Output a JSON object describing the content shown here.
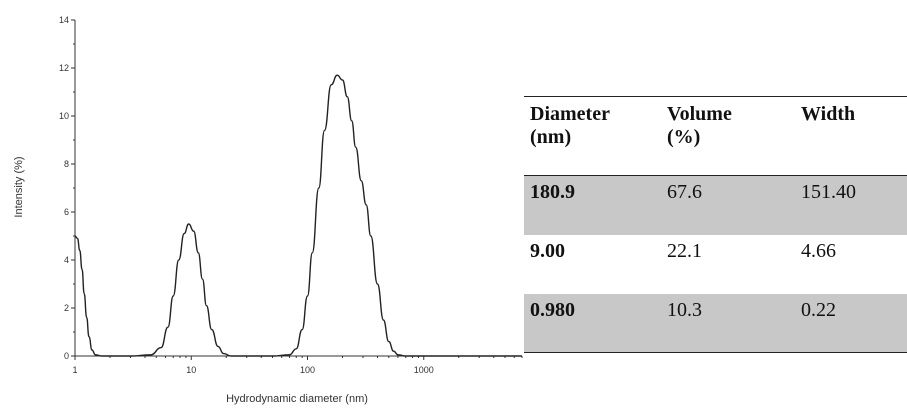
{
  "chart_data": {
    "type": "line",
    "xlabel": "Hydrodynamic diameter (nm)",
    "ylabel": "Intensity (%)",
    "x_scale": "log",
    "xlim": [
      1,
      7000
    ],
    "ylim": [
      0,
      14
    ],
    "x_ticks": [
      1,
      10,
      100,
      1000
    ],
    "x_tick_labels": [
      "1",
      "10",
      "100",
      "1000"
    ],
    "y_ticks": [
      0,
      2,
      4,
      6,
      8,
      10,
      12,
      14
    ],
    "y_tick_labels": [
      "0",
      "2",
      "4",
      "6",
      "8",
      "10",
      "12",
      "14"
    ],
    "grid": false,
    "series": [
      {
        "x": [
          1.0,
          1.05,
          1.1,
          1.15,
          1.2,
          1.26,
          1.32,
          1.4,
          1.5,
          1.7,
          2.0,
          3.0,
          4.5,
          5.5,
          6.3,
          7.0,
          7.8,
          8.7,
          9.5,
          10.5,
          11.5,
          12.5,
          13.5,
          15.0,
          17.0,
          19.0,
          22.0,
          30.0,
          50.0,
          70.0,
          80.0,
          90.0,
          100.0,
          110.0,
          125.0,
          140.0,
          160.0,
          180.0,
          200.0,
          220.0,
          240.0,
          260.0,
          290.0,
          320.0,
          350.0,
          400.0,
          450.0,
          500.0,
          550.0,
          600.0,
          700.0,
          1000.0,
          3000.0,
          7000.0
        ],
        "y": [
          5.0,
          4.9,
          4.4,
          3.6,
          2.6,
          1.6,
          0.8,
          0.25,
          0.05,
          0.0,
          0.0,
          0.0,
          0.05,
          0.35,
          1.2,
          2.5,
          4.0,
          5.1,
          5.5,
          5.2,
          4.3,
          3.2,
          2.1,
          1.1,
          0.4,
          0.1,
          0.0,
          0.0,
          0.0,
          0.05,
          0.3,
          1.1,
          2.5,
          4.3,
          7.0,
          9.4,
          11.3,
          11.7,
          11.5,
          10.8,
          9.8,
          8.7,
          7.3,
          6.3,
          5.0,
          3.0,
          1.5,
          0.6,
          0.2,
          0.05,
          0.0,
          0.0,
          0.0,
          0.0
        ]
      }
    ]
  },
  "table": {
    "headers": [
      {
        "line1": "Diameter",
        "line2": "(nm)"
      },
      {
        "line1": "Volume",
        "line2": "(%)"
      },
      {
        "line1": "Width",
        "line2": ""
      }
    ],
    "rows": [
      [
        "180.9",
        "67.6",
        "151.40"
      ],
      [
        "9.00",
        "22.1",
        "4.66"
      ],
      [
        "0.980",
        "10.3",
        "0.22"
      ]
    ]
  }
}
